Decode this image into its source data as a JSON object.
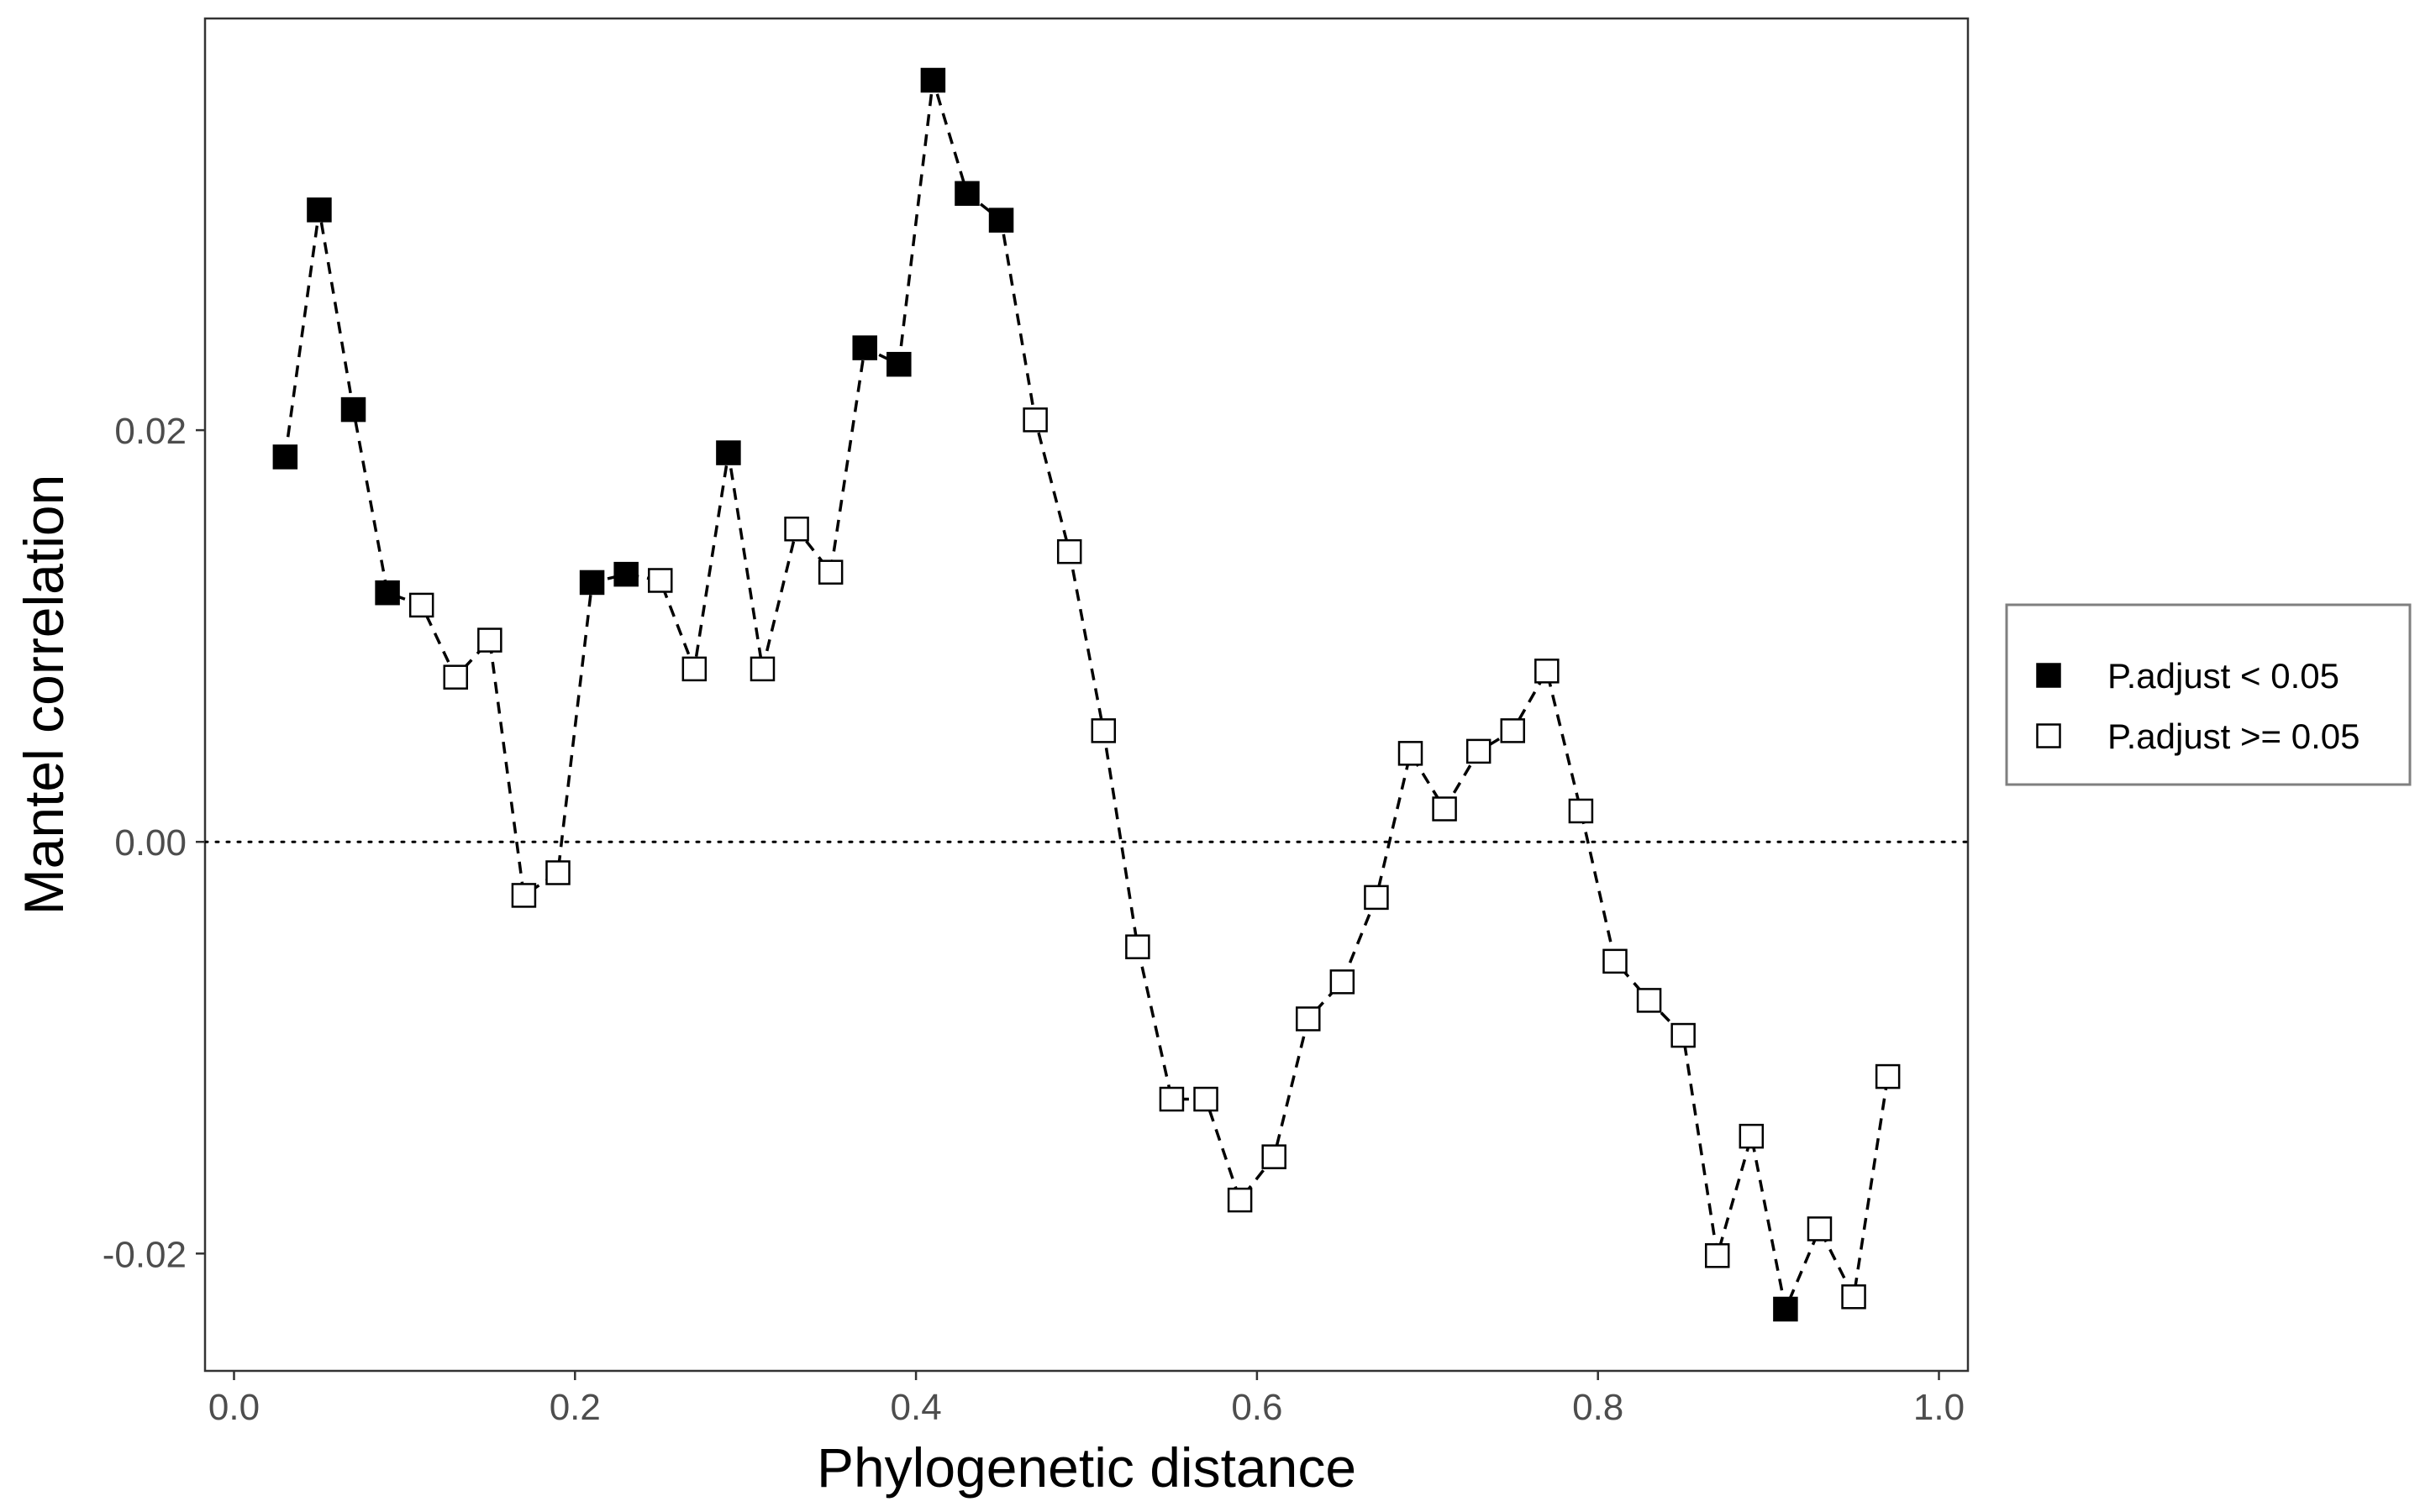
{
  "chart_data": {
    "type": "scatter",
    "title": "",
    "xlabel": "Phylogenetic distance",
    "ylabel": "Mantel correlation",
    "xlim": [
      -0.017,
      1.017
    ],
    "ylim": [
      -0.0257,
      0.04
    ],
    "x_ticks": [
      0.0,
      0.2,
      0.4,
      0.6,
      0.8,
      1.0
    ],
    "x_tick_labels": [
      "0.0",
      "0.2",
      "0.4",
      "0.6",
      "0.8",
      "1.0"
    ],
    "y_ticks": [
      -0.02,
      0.0,
      0.02
    ],
    "y_tick_labels": [
      "-0.02",
      "0.00",
      "0.02"
    ],
    "grid": false,
    "connecting_line": "dashed",
    "reference_line": {
      "y": 0.0,
      "style": "dotted"
    },
    "legend": {
      "placement": "right",
      "entries": [
        {
          "label": "P.adjust < 0.05",
          "fill": "#000000"
        },
        {
          "label": "P.adjust >= 0.05",
          "fill": "#ffffff"
        }
      ]
    },
    "points": [
      {
        "x": 0.03,
        "y": 0.0187,
        "significant": true
      },
      {
        "x": 0.05,
        "y": 0.0307,
        "significant": true
      },
      {
        "x": 0.07,
        "y": 0.021,
        "significant": true
      },
      {
        "x": 0.09,
        "y": 0.0121,
        "significant": true
      },
      {
        "x": 0.11,
        "y": 0.0115,
        "significant": false
      },
      {
        "x": 0.13,
        "y": 0.008,
        "significant": false
      },
      {
        "x": 0.15,
        "y": 0.0098,
        "significant": false
      },
      {
        "x": 0.17,
        "y": -0.0026,
        "significant": false
      },
      {
        "x": 0.19,
        "y": -0.0015,
        "significant": false
      },
      {
        "x": 0.21,
        "y": 0.0126,
        "significant": true
      },
      {
        "x": 0.23,
        "y": 0.013,
        "significant": true
      },
      {
        "x": 0.25,
        "y": 0.0127,
        "significant": false
      },
      {
        "x": 0.27,
        "y": 0.0084,
        "significant": false
      },
      {
        "x": 0.29,
        "y": 0.0189,
        "significant": true
      },
      {
        "x": 0.31,
        "y": 0.0084,
        "significant": false
      },
      {
        "x": 0.33,
        "y": 0.0152,
        "significant": false
      },
      {
        "x": 0.35,
        "y": 0.0131,
        "significant": false
      },
      {
        "x": 0.37,
        "y": 0.024,
        "significant": true
      },
      {
        "x": 0.39,
        "y": 0.0232,
        "significant": true
      },
      {
        "x": 0.41,
        "y": 0.037,
        "significant": true
      },
      {
        "x": 0.43,
        "y": 0.0315,
        "significant": true
      },
      {
        "x": 0.45,
        "y": 0.0302,
        "significant": true
      },
      {
        "x": 0.47,
        "y": 0.0205,
        "significant": false
      },
      {
        "x": 0.49,
        "y": 0.0141,
        "significant": false
      },
      {
        "x": 0.51,
        "y": 0.0054,
        "significant": false
      },
      {
        "x": 0.53,
        "y": -0.0051,
        "significant": false
      },
      {
        "x": 0.55,
        "y": -0.0125,
        "significant": false
      },
      {
        "x": 0.57,
        "y": -0.0125,
        "significant": false
      },
      {
        "x": 0.59,
        "y": -0.0174,
        "significant": false
      },
      {
        "x": 0.61,
        "y": -0.0153,
        "significant": false
      },
      {
        "x": 0.63,
        "y": -0.0086,
        "significant": false
      },
      {
        "x": 0.65,
        "y": -0.0068,
        "significant": false
      },
      {
        "x": 0.67,
        "y": -0.0027,
        "significant": false
      },
      {
        "x": 0.69,
        "y": 0.0043,
        "significant": false
      },
      {
        "x": 0.71,
        "y": 0.0016,
        "significant": false
      },
      {
        "x": 0.73,
        "y": 0.0044,
        "significant": false
      },
      {
        "x": 0.75,
        "y": 0.0054,
        "significant": false
      },
      {
        "x": 0.77,
        "y": 0.0083,
        "significant": false
      },
      {
        "x": 0.79,
        "y": 0.0015,
        "significant": false
      },
      {
        "x": 0.81,
        "y": -0.0058,
        "significant": false
      },
      {
        "x": 0.83,
        "y": -0.0077,
        "significant": false
      },
      {
        "x": 0.85,
        "y": -0.0094,
        "significant": false
      },
      {
        "x": 0.87,
        "y": -0.0201,
        "significant": false
      },
      {
        "x": 0.89,
        "y": -0.0143,
        "significant": false
      },
      {
        "x": 0.91,
        "y": -0.0227,
        "significant": true
      },
      {
        "x": 0.93,
        "y": -0.0188,
        "significant": false
      },
      {
        "x": 0.95,
        "y": -0.0221,
        "significant": false
      },
      {
        "x": 0.97,
        "y": -0.0114,
        "significant": false
      }
    ]
  }
}
